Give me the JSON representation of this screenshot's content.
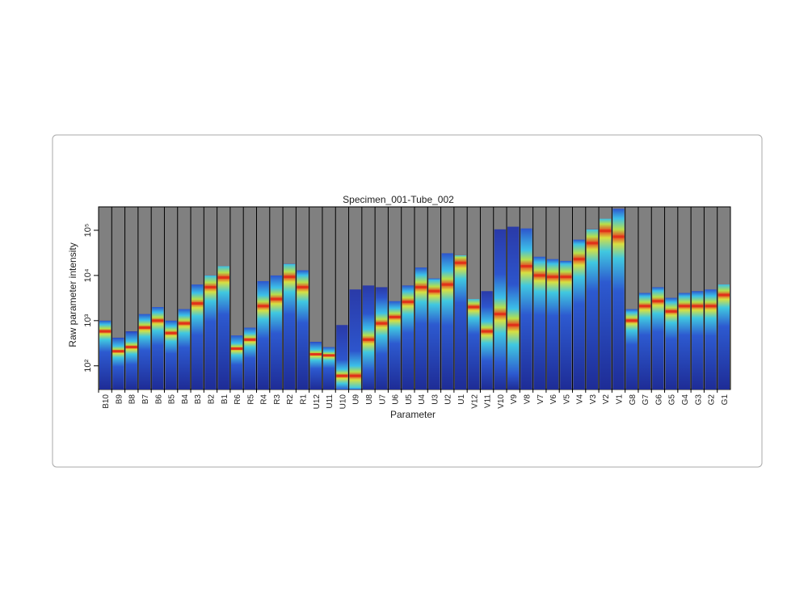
{
  "chart_data": {
    "type": "density-strip",
    "title": "Specimen_001-Tube_002",
    "x_label": "Parameter",
    "y_label": "Raw parameter intensity",
    "log_scale": true,
    "categories": [
      "B10",
      "B9",
      "B8",
      "B7",
      "B6",
      "B5",
      "B4",
      "B3",
      "B2",
      "B1",
      "R6",
      "R5",
      "R4",
      "R3",
      "R2",
      "R1",
      "U12",
      "U11",
      "U10",
      "U9",
      "U8",
      "U7",
      "U6",
      "U5",
      "U4",
      "U3",
      "U2",
      "U1",
      "V12",
      "V11",
      "V10",
      "V9",
      "V8",
      "V7",
      "V6",
      "V5",
      "V4",
      "V3",
      "V2",
      "V1",
      "G8",
      "G7",
      "G6",
      "G5",
      "G4",
      "G3",
      "G2",
      "G1"
    ],
    "top_values": [
      1000,
      420,
      580,
      1400,
      2000,
      1000,
      1800,
      6300,
      10000,
      16000,
      470,
      700,
      7500,
      10000,
      18000,
      13000,
      340,
      260,
      800,
      4900,
      6000,
      5500,
      2700,
      6000,
      15000,
      8600,
      31000,
      28000,
      3000,
      4500,
      105000,
      120000,
      110000,
      26000,
      23000,
      21000,
      62000,
      105000,
      180000,
      300000,
      1800,
      4100,
      5500,
      3200,
      4100,
      4500,
      4900,
      6300
    ],
    "peak_values": [
      580,
      210,
      260,
      700,
      1000,
      530,
      870,
      2400,
      5500,
      9000,
      240,
      380,
      2100,
      3000,
      9300,
      5500,
      180,
      170,
      60,
      60,
      380,
      870,
      1200,
      2600,
      5500,
      4500,
      6300,
      19000,
      2000,
      580,
      1400,
      800,
      16000,
      10000,
      9300,
      9300,
      23000,
      52000,
      97000,
      72000,
      1000,
      2100,
      2700,
      1600,
      2100,
      2100,
      2100,
      3700
    ],
    "ylim": [
      30,
      330000
    ],
    "yticks": [
      {
        "value": 100,
        "label": "10²"
      },
      {
        "value": 1000,
        "label": "10³"
      },
      {
        "value": 10000,
        "label": "10⁴"
      },
      {
        "value": 100000,
        "label": "10⁵"
      }
    ],
    "background_color": "#808080"
  }
}
